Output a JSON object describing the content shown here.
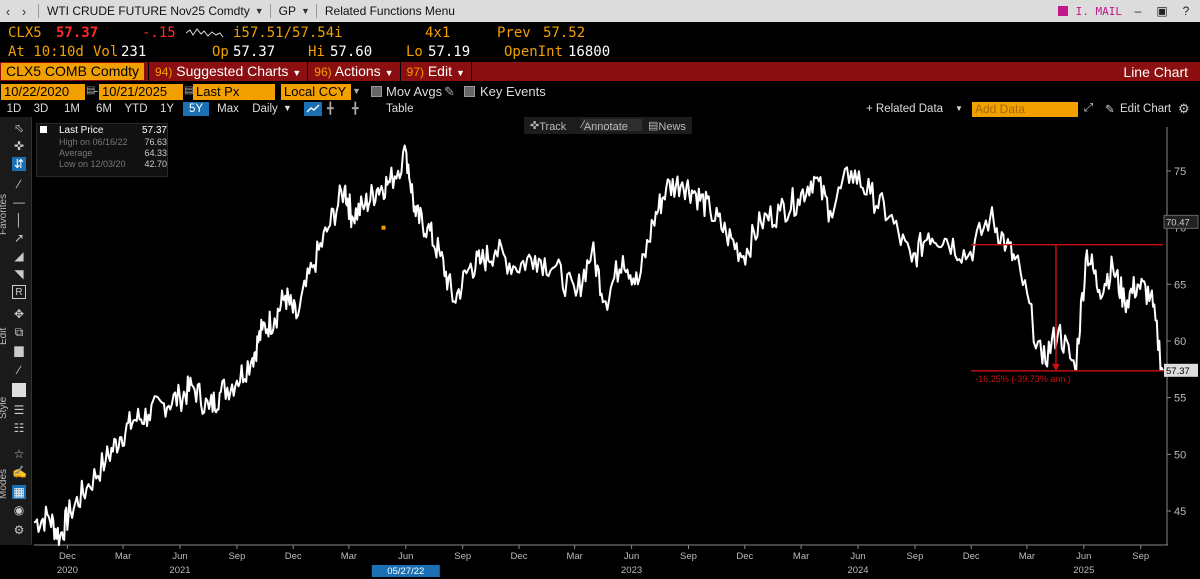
{
  "titlebar": {
    "security": "WTI CRUDE FUTURE Nov25 Comdty",
    "function": "GP",
    "related": "Related Functions Menu",
    "mail": "I. MAIL"
  },
  "quote1": {
    "ticker": "CLX5",
    "last": "57.37",
    "change": "-.15",
    "bidask": "i57.51/57.54i",
    "size": "4x1",
    "prev_label": "Prev",
    "prev": "57.52"
  },
  "quote2": {
    "at": "At 10:10d",
    "vol_label": "Vol",
    "vol": "231",
    "op_label": "Op",
    "op": "57.37",
    "hi_label": "Hi",
    "hi": "57.60",
    "lo_label": "Lo",
    "lo": "57.19",
    "oi_label": "OpenInt",
    "oi": "16800"
  },
  "cmdbar": {
    "security": "CLX5 COMB Comdty",
    "m1_num": "94)",
    "m1": "Suggested Charts",
    "m2_num": "96)",
    "m2": "Actions",
    "m3_num": "97)",
    "m3": "Edit",
    "chart_type": "Line Chart"
  },
  "controls": {
    "start_date": "10/22/2020",
    "end_date": "10/21/2025",
    "field": "Last Px",
    "currency": "Local CCY",
    "mov_avgs": "Mov Avgs",
    "key_events": "Key Events"
  },
  "ranges": [
    "1D",
    "3D",
    "1M",
    "6M",
    "YTD",
    "1Y",
    "5Y",
    "Max"
  ],
  "active_range": "5Y",
  "frequency": "Daily",
  "table_label": "Table",
  "related_data": "+ Related Data",
  "add_data_placeholder": "Add Data",
  "edit_chart": "Edit Chart",
  "side_labels": {
    "favorites": "Favorites",
    "edit": "Edit",
    "style": "Style",
    "modes": "Modes"
  },
  "chart_tabs": [
    "Track",
    "Annotate",
    "News"
  ],
  "legend": {
    "series": "Last Price",
    "series_value": "57.37",
    "high_label": "High on 06/16/22",
    "high": "76.63",
    "avg_label": "Average",
    "avg": "64.33",
    "low_label": "Low on 12/03/20",
    "low": "42.70"
  },
  "annotation": {
    "text": "-16.25% (-39.73% ann.)",
    "value_label_high": "70.47",
    "value_label_last": "57.37",
    "date_flag": "05/27/22"
  },
  "colors": {
    "orange": "#f2a000",
    "red_bar": "#8b0f10",
    "annotation_red": "#cc1111",
    "line": "#ffffff",
    "active_blue": "#1b6fb4"
  },
  "chart_data": {
    "type": "line",
    "series": [
      {
        "name": "Last Price",
        "x": [
          "2020-10-22",
          "2020-11-15",
          "2020-12-03",
          "2020-12-20",
          "2021-01-15",
          "2021-02-15",
          "2021-03-10",
          "2021-04-01",
          "2021-04-25",
          "2021-05-20",
          "2021-06-15",
          "2021-07-06",
          "2021-08-01",
          "2021-08-20",
          "2021-09-15",
          "2021-10-10",
          "2021-10-26",
          "2021-11-15",
          "2021-12-02",
          "2021-12-20",
          "2022-01-15",
          "2022-02-10",
          "2022-03-08",
          "2022-03-20",
          "2022-04-10",
          "2022-05-01",
          "2022-05-20",
          "2022-06-16",
          "2022-07-01",
          "2022-07-20",
          "2022-08-10",
          "2022-09-01",
          "2022-09-26",
          "2022-10-15",
          "2022-11-07",
          "2022-12-09",
          "2023-01-10",
          "2023-02-10",
          "2023-03-17",
          "2023-04-12",
          "2023-05-04",
          "2023-06-01",
          "2023-06-25",
          "2023-07-20",
          "2023-08-10",
          "2023-09-05",
          "2023-09-27",
          "2023-10-20",
          "2023-11-15",
          "2023-12-13",
          "2024-01-10",
          "2024-02-10",
          "2024-03-10",
          "2024-04-05",
          "2024-05-01",
          "2024-06-04",
          "2024-07-05",
          "2024-08-05",
          "2024-09-10",
          "2024-10-07",
          "2024-11-05",
          "2024-12-10",
          "2025-01-15",
          "2025-02-10",
          "2025-03-05",
          "2025-04-09",
          "2025-05-05",
          "2025-06-01",
          "2025-06-20",
          "2025-07-10",
          "2025-08-01",
          "2025-08-20",
          "2025-09-10",
          "2025-10-01",
          "2025-10-21"
        ],
        "y": [
          44.0,
          44.5,
          42.7,
          45.0,
          47.0,
          49.5,
          51.5,
          53.0,
          53.5,
          54.5,
          55.0,
          56.0,
          54.0,
          55.5,
          56.5,
          58.5,
          61.0,
          62.0,
          64.0,
          62.0,
          66.5,
          70.0,
          73.5,
          71.0,
          72.0,
          73.5,
          74.0,
          76.6,
          71.0,
          70.0,
          67.5,
          63.5,
          66.5,
          67.0,
          68.0,
          66.5,
          67.5,
          66.5,
          64.0,
          68.0,
          63.5,
          67.5,
          65.0,
          70.5,
          73.5,
          74.0,
          73.0,
          71.5,
          69.5,
          67.5,
          70.5,
          71.5,
          72.5,
          74.5,
          71.5,
          75.0,
          73.0,
          71.0,
          67.0,
          69.5,
          69.0,
          67.5,
          71.0,
          68.5,
          66.0,
          58.0,
          61.0,
          57.5,
          68.0,
          64.5,
          66.5,
          63.5,
          65.0,
          64.0,
          57.37
        ]
      }
    ],
    "xlabel": "",
    "ylabel": "",
    "ylim": [
      42,
      78
    ],
    "y_ticks": [
      45,
      50,
      55,
      60,
      65,
      70,
      75
    ],
    "x_ticks": [
      {
        "date": "2020-12-15",
        "label": "Dec"
      },
      {
        "date": "2021-03-15",
        "label": "Mar"
      },
      {
        "date": "2021-06-15",
        "label": "Jun"
      },
      {
        "date": "2021-09-15",
        "label": "Sep"
      },
      {
        "date": "2021-12-15",
        "label": "Dec"
      },
      {
        "date": "2022-03-15",
        "label": "Mar"
      },
      {
        "date": "2022-06-15",
        "label": "Jun"
      },
      {
        "date": "2022-09-15",
        "label": "Sep"
      },
      {
        "date": "2022-12-15",
        "label": "Dec"
      },
      {
        "date": "2023-03-15",
        "label": "Mar"
      },
      {
        "date": "2023-06-15",
        "label": "Jun"
      },
      {
        "date": "2023-09-15",
        "label": "Sep"
      },
      {
        "date": "2023-12-15",
        "label": "Dec"
      },
      {
        "date": "2024-03-15",
        "label": "Mar"
      },
      {
        "date": "2024-06-15",
        "label": "Jun"
      },
      {
        "date": "2024-09-15",
        "label": "Sep"
      },
      {
        "date": "2024-12-15",
        "label": "Dec"
      },
      {
        "date": "2025-03-15",
        "label": "Mar"
      },
      {
        "date": "2025-06-15",
        "label": "Jun"
      },
      {
        "date": "2025-09-15",
        "label": "Sep"
      }
    ],
    "year_labels": [
      {
        "date": "2020-12-15",
        "label": "2020"
      },
      {
        "date": "2021-06-15",
        "label": "2021"
      },
      {
        "date": "2023-06-15",
        "label": "2023"
      },
      {
        "date": "2024-06-15",
        "label": "2024"
      },
      {
        "date": "2025-06-15",
        "label": "2025"
      }
    ],
    "x_range": [
      "2020-10-22",
      "2025-10-21"
    ],
    "annotation_high": 68.5,
    "annotation_low": 57.37,
    "annotation_start": "2024-12-15",
    "annotation_end": "2025-10-21",
    "annotation_mid": "2025-05-01",
    "marker": {
      "date": "2022-05-10",
      "value": 70.0
    },
    "grid": false
  }
}
